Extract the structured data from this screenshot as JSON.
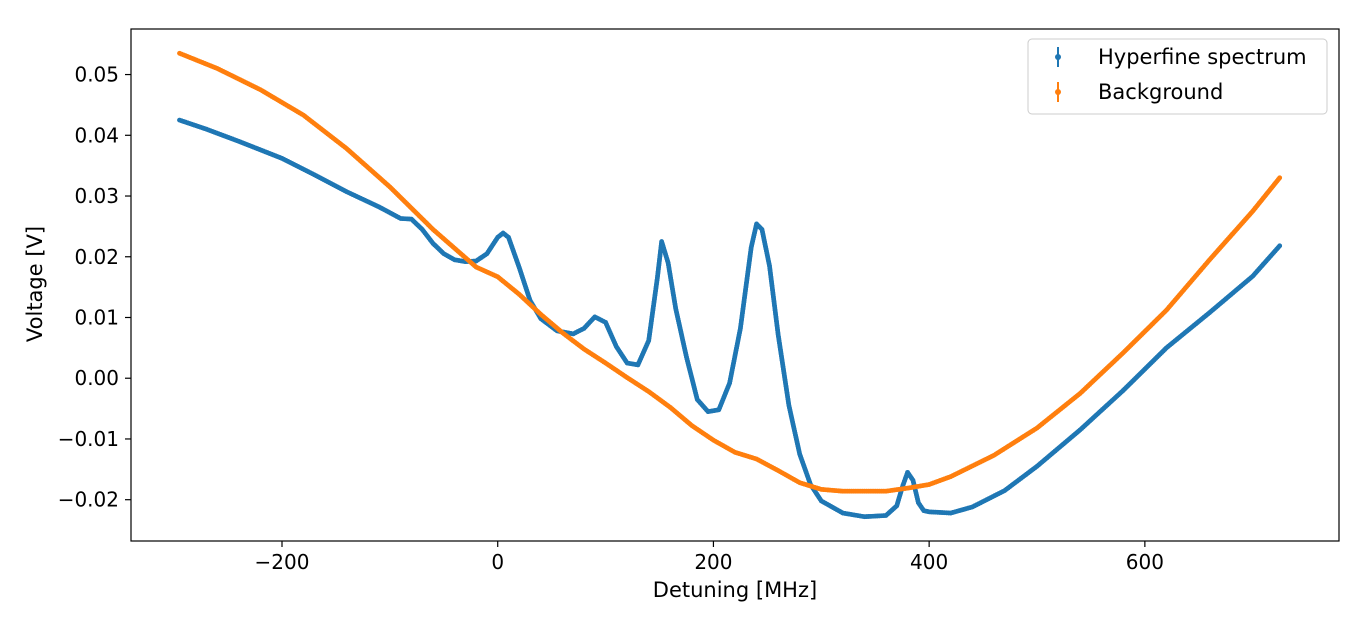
{
  "chart_data": {
    "type": "scatter",
    "xlabel": "Detuning [MHz]",
    "ylabel": "Voltage [V]",
    "xlim": [
      -340,
      780
    ],
    "ylim": [
      -0.0268,
      0.0575
    ],
    "xticks": [
      -200,
      0,
      200,
      400,
      600
    ],
    "xtick_labels": [
      "−200",
      "0",
      "200",
      "400",
      "600"
    ],
    "yticks": [
      -0.02,
      -0.01,
      0.0,
      0.01,
      0.02,
      0.03,
      0.04,
      0.05
    ],
    "ytick_labels": [
      "−0.02",
      "−0.01",
      "0.00",
      "0.01",
      "0.02",
      "0.03",
      "0.04",
      "0.05"
    ],
    "grid": false,
    "legend_position": "top-right",
    "series": [
      {
        "name": "Hyperfine spectrum",
        "color": "#1f77b4",
        "x": [
          -295,
          -270,
          -240,
          -200,
          -170,
          -140,
          -110,
          -90,
          -80,
          -70,
          -60,
          -50,
          -40,
          -30,
          -20,
          -10,
          0,
          5,
          10,
          20,
          30,
          40,
          55,
          70,
          80,
          90,
          100,
          110,
          120,
          130,
          140,
          148,
          152,
          158,
          165,
          175,
          185,
          195,
          205,
          215,
          225,
          235,
          240,
          245,
          252,
          260,
          270,
          280,
          290,
          300,
          320,
          340,
          360,
          370,
          375,
          380,
          385,
          390,
          395,
          400,
          420,
          440,
          470,
          500,
          540,
          580,
          620,
          660,
          700,
          725
        ],
        "y": [
          0.0425,
          0.041,
          0.039,
          0.0362,
          0.0335,
          0.0307,
          0.0282,
          0.0263,
          0.0262,
          0.0245,
          0.0222,
          0.0205,
          0.0195,
          0.0192,
          0.0193,
          0.0205,
          0.0232,
          0.0239,
          0.0232,
          0.0182,
          0.0128,
          0.0098,
          0.0078,
          0.0073,
          0.0082,
          0.0101,
          0.0092,
          0.0052,
          0.0025,
          0.0022,
          0.0062,
          0.0165,
          0.0225,
          0.019,
          0.0115,
          0.0035,
          -0.0035,
          -0.0055,
          -0.0052,
          -0.0008,
          0.0082,
          0.0215,
          0.0254,
          0.0245,
          0.0185,
          0.0072,
          -0.0045,
          -0.0125,
          -0.0175,
          -0.0202,
          -0.0222,
          -0.0228,
          -0.0226,
          -0.021,
          -0.018,
          -0.0155,
          -0.0168,
          -0.0205,
          -0.0218,
          -0.022,
          -0.0222,
          -0.0212,
          -0.0185,
          -0.0145,
          -0.0085,
          -0.002,
          0.005,
          0.0108,
          0.0168,
          0.0218
        ]
      },
      {
        "name": "Background",
        "color": "#ff7f0e",
        "x": [
          -295,
          -260,
          -220,
          -180,
          -140,
          -100,
          -60,
          -20,
          0,
          20,
          40,
          60,
          80,
          100,
          120,
          140,
          160,
          180,
          200,
          220,
          240,
          260,
          280,
          300,
          320,
          340,
          360,
          380,
          400,
          420,
          460,
          500,
          540,
          580,
          620,
          660,
          700,
          725
        ],
        "y": [
          0.0535,
          0.051,
          0.0475,
          0.0433,
          0.0378,
          0.0315,
          0.0245,
          0.0183,
          0.0167,
          0.0138,
          0.0105,
          0.0075,
          0.0048,
          0.0025,
          0.0001,
          -0.0022,
          -0.0048,
          -0.0078,
          -0.0102,
          -0.0122,
          -0.0133,
          -0.0152,
          -0.0172,
          -0.0183,
          -0.0186,
          -0.0186,
          -0.0186,
          -0.0181,
          -0.0175,
          -0.0162,
          -0.0127,
          -0.0082,
          -0.0025,
          0.0042,
          0.0112,
          0.0195,
          0.0275,
          0.033
        ]
      }
    ]
  }
}
